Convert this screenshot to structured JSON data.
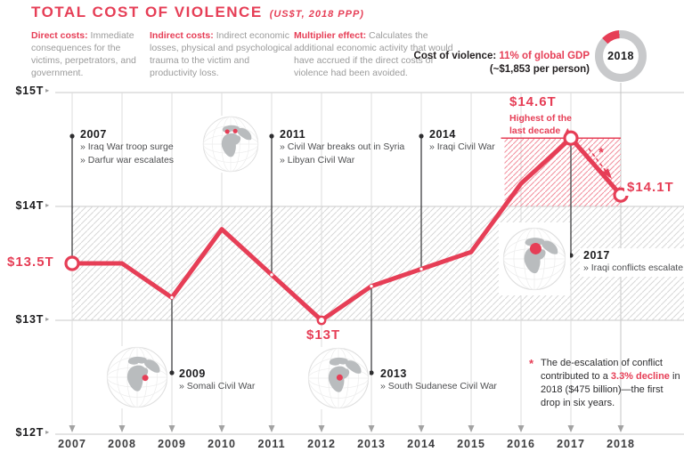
{
  "header": {
    "title": "TOTAL COST OF VIOLENCE",
    "subtitle": "(US$T, 2018 PPP)",
    "definitions": [
      {
        "term": "Direct costs:",
        "text": " Immediate consequences for the victims, perpetrators, and government."
      },
      {
        "term": "Indirect costs:",
        "text": " Indirect economic losses, physical and psychological trauma to the victim and productivity loss."
      },
      {
        "term": "Multiplier effect:",
        "text": " Calculates the additional economic activity that would have accrued if the direct costs of violence had been avoided."
      }
    ],
    "cost_note": {
      "prefix": "Cost of violence: ",
      "highlight": "11% of global GDP",
      "line2": "(~$1,853 per person)"
    },
    "donut": {
      "year": "2018",
      "share_pct": 11
    }
  },
  "chart_data": {
    "type": "line",
    "title": "Total cost of violence, 2007-2018 (US$T, 2018 PPP)",
    "x": [
      2007,
      2008,
      2009,
      2010,
      2011,
      2012,
      2013,
      2014,
      2015,
      2016,
      2017,
      2018
    ],
    "values": [
      13.5,
      13.5,
      13.2,
      13.8,
      13.4,
      13.0,
      13.3,
      13.45,
      13.6,
      14.2,
      14.6,
      14.1
    ],
    "ylim": [
      12,
      15
    ],
    "yticks": [
      {
        "value": 15,
        "label": "$15T"
      },
      {
        "value": 14,
        "label": "$14T"
      },
      {
        "value": 13,
        "label": "$13T"
      },
      {
        "value": 12,
        "label": "$12T"
      }
    ],
    "point_labels": [
      {
        "year": 2007,
        "label": "$13.5T"
      },
      {
        "year": 2012,
        "label": "$13T"
      },
      {
        "year": 2017,
        "label": "$14.6T"
      },
      {
        "year": 2018,
        "label": "$14.1T"
      }
    ],
    "peak_note": "Highest of the last decade ▲",
    "decline_marker": "*",
    "band": {
      "from": 13,
      "to": 14
    },
    "peak_band": {
      "from": 14,
      "to": 14.6,
      "x_from": 2015.67,
      "x_to": 2018
    },
    "events": [
      {
        "year": "2007",
        "items": [
          "» Iraq War troop surge",
          "» Darfur war escalates"
        ]
      },
      {
        "year": "2009",
        "items": [
          "» Somali Civil War"
        ]
      },
      {
        "year": "2011",
        "items": [
          "» Civil War breaks out in Syria",
          "» Libyan Civil War"
        ]
      },
      {
        "year": "2013",
        "items": [
          "» South Sudanese Civil War"
        ]
      },
      {
        "year": "2014",
        "items": [
          "» Iraqi Civil War"
        ]
      },
      {
        "year": "2017",
        "items": [
          "» Iraqi conflicts escalate"
        ]
      }
    ],
    "footnote": {
      "marker": "*",
      "pre": "The de-escalation of conflict contributed to a ",
      "highlight": "3.3% decline",
      "post": " in 2018 ($475 billion)—the first drop in six years."
    }
  },
  "colors": {
    "accent": "#e63e56",
    "muted_text": "#9b9b9b",
    "dark_text": "#231f20",
    "item_text": "#4e4f51",
    "grid": "#c9c9c9",
    "vgrid": "#dcdcdc",
    "hatch": "#d7d7d7",
    "hatch_red": "#f2919f",
    "donut_track": "#c8c9cb",
    "continent": "#b9bcbe",
    "callout": "#3f3f41"
  },
  "icons": {
    "axis_arrow": "▸",
    "globe": "globe with highlighted conflict location"
  }
}
